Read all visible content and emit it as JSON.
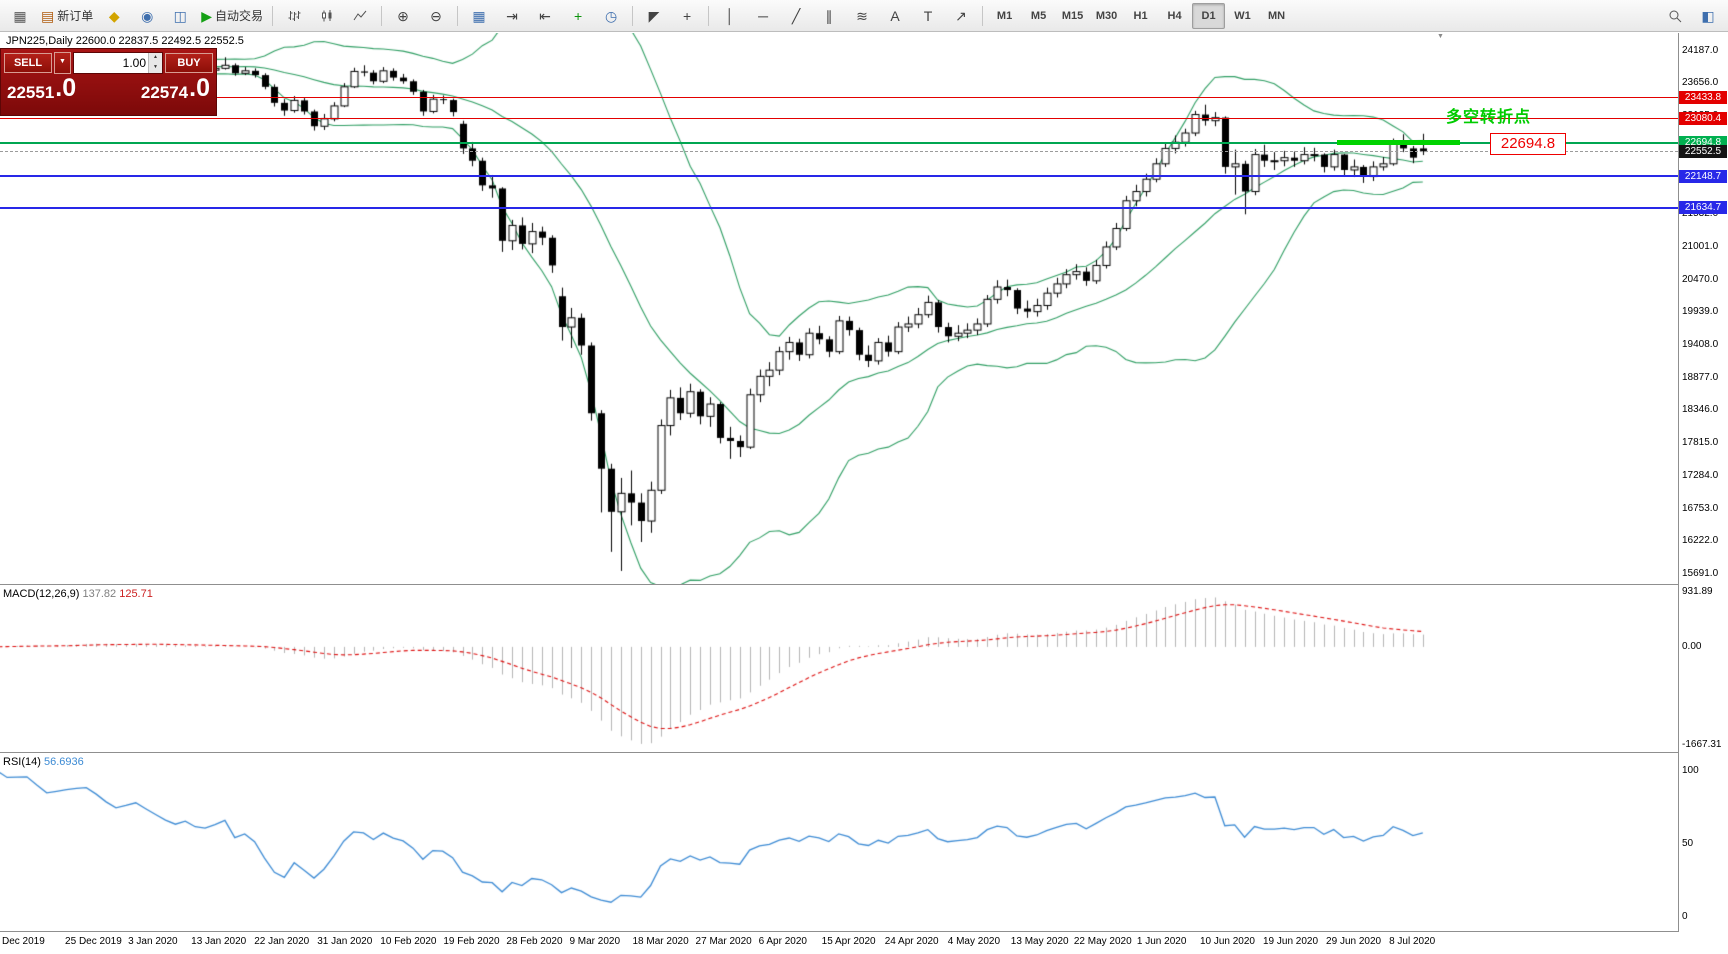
{
  "toolbar": {
    "items": [
      {
        "name": "new-chart-icon",
        "glyph": "▦",
        "color": "#5a5a5a"
      },
      {
        "name": "new-order-button",
        "glyph": "▤",
        "color": "#b05c10",
        "label": "新订单"
      },
      {
        "name": "history-center-icon",
        "glyph": "◆",
        "color": "#d2a400"
      },
      {
        "name": "navigator-icon",
        "glyph": "◉",
        "color": "#3f6fae"
      },
      {
        "name": "data-window-icon",
        "glyph": "◫",
        "color": "#3f6fae"
      },
      {
        "name": "autotrading-button",
        "glyph": "▶",
        "color": "#15a015",
        "label": "自动交易"
      },
      {
        "sep": true
      },
      {
        "name": "bar-chart-icon",
        "svg": "bars"
      },
      {
        "name": "candlestick-chart-icon",
        "svg": "candles"
      },
      {
        "name": "line-chart-icon",
        "svg": "line"
      },
      {
        "sep": true
      },
      {
        "name": "zoom-in-icon",
        "glyph": "⊕",
        "color": "#444444"
      },
      {
        "name": "zoom-out-icon",
        "glyph": "⊖",
        "color": "#444444"
      },
      {
        "sep": true
      },
      {
        "name": "tile-windows-icon",
        "glyph": "▦",
        "color": "#3f6fae"
      },
      {
        "name": "auto-scroll-icon",
        "glyph": "⇥",
        "color": "#444444"
      },
      {
        "name": "chart-shift-icon",
        "glyph": "⇤",
        "color": "#444444"
      },
      {
        "name": "indicators-icon",
        "glyph": "+",
        "color": "#0c930c"
      },
      {
        "name": "periods-icon",
        "glyph": "◷",
        "color": "#3f6fae"
      },
      {
        "sep": true
      },
      {
        "name": "cursor-icon",
        "glyph": "◤",
        "color": "#444444"
      },
      {
        "name": "crosshair-icon",
        "glyph": "+",
        "color": "#444444"
      },
      {
        "sep": true
      },
      {
        "name": "vertical-line-icon",
        "glyph": "│",
        "color": "#444444"
      },
      {
        "name": "horizontal-line-icon",
        "glyph": "─",
        "color": "#444444"
      },
      {
        "name": "trendline-icon",
        "glyph": "╱",
        "color": "#444444"
      },
      {
        "name": "channel-icon",
        "glyph": "∥",
        "color": "#444444"
      },
      {
        "name": "fibonacci-icon",
        "glyph": "≋",
        "color": "#444444"
      },
      {
        "name": "text-icon",
        "glyph": "A",
        "color": "#444444"
      },
      {
        "name": "label-icon",
        "glyph": "T",
        "color": "#444444"
      },
      {
        "name": "arrow-tools-icon",
        "glyph": "↗",
        "color": "#444444"
      },
      {
        "sep": true
      }
    ],
    "timeframes": [
      "M1",
      "M5",
      "M15",
      "M30",
      "H1",
      "H4",
      "D1",
      "W1",
      "MN"
    ],
    "active_timeframe": "D1",
    "right_items": [
      {
        "name": "search-icon",
        "svg": "search"
      },
      {
        "name": "window-layout-icon",
        "glyph": "◧",
        "color": "#3f6fae"
      }
    ]
  },
  "trade_panel": {
    "sell_label": "SELL",
    "buy_label": "BUY",
    "volume": "1.00",
    "sell_price_main": "22551",
    "sell_price_big": ".0",
    "buy_price_main": "22574",
    "buy_price_big": ".0"
  },
  "chart": {
    "symbol_line": "JPN225,Daily  22600.0 22837.5 22492.5 22552.5",
    "objects": {
      "levels": [
        {
          "price": 23433.8,
          "label": "23433.8",
          "color": "#e30000",
          "width": 1
        },
        {
          "price": 23080.4,
          "label": "23080.4",
          "color": "#e30000",
          "width": 1
        },
        {
          "price": 22694.8,
          "label": "22694.8",
          "color": "#00a651",
          "width": 2
        },
        {
          "price": 22148.7,
          "label": "22148.7",
          "color": "#2828e8",
          "width": 2
        },
        {
          "price": 21634.7,
          "label": "21634.7",
          "color": "#2828e8",
          "width": 2
        }
      ],
      "current_price": {
        "price": 22552.5,
        "label": "22552.5",
        "badge_color": "#141414",
        "line_color": "#9b9b9b"
      },
      "highlight_segment": {
        "price": 22694.8,
        "color": "#00d300"
      },
      "annotation_text": {
        "text": "多空转折点",
        "color": "#00cc00"
      },
      "price_label": {
        "text": "22694.8",
        "color": "#ee0000"
      }
    }
  },
  "chart_data": {
    "type": "candlestick",
    "symbol": "JPN225",
    "timeframe": "Daily",
    "title": "JPN225,Daily",
    "y_ticks": [
      "24187.0",
      "23656.0",
      "23125.0",
      "22594.0",
      "22063.0",
      "21532.0",
      "21001.0",
      "20470.0",
      "19939.0",
      "19408.0",
      "18877.0",
      "18346.0",
      "17815.0",
      "17284.0",
      "16753.0",
      "16222.0",
      "15691.0"
    ],
    "x_labels": [
      "Dec 2019",
      "25 Dec 2019",
      "3 Jan 2020",
      "13 Jan 2020",
      "22 Jan 2020",
      "31 Jan 2020",
      "10 Feb 2020",
      "19 Feb 2020",
      "28 Feb 2020",
      "9 Mar 2020",
      "18 Mar 2020",
      "27 Mar 2020",
      "6 Apr 2020",
      "15 Apr 2020",
      "24 Apr 2020",
      "4 May 2020",
      "13 May 2020",
      "22 May 2020",
      "1 Jun 2020",
      "10 Jun 2020",
      "19 Jun 2020",
      "29 Jun 2020",
      "8 Jul 2020"
    ],
    "indicators": {
      "bollinger": {
        "period": 20,
        "deviation": 2
      },
      "macd": {
        "fast": 12,
        "slow": 26,
        "signal": 9
      },
      "rsi": {
        "period": 14
      }
    },
    "ohlc": [
      [
        23700,
        23810,
        23650,
        23780
      ],
      [
        23780,
        23880,
        23730,
        23850
      ],
      [
        23850,
        23920,
        23790,
        23870
      ],
      [
        23870,
        23940,
        23800,
        23830
      ],
      [
        23830,
        23900,
        23760,
        23880
      ],
      [
        23880,
        23960,
        23820,
        23920
      ],
      [
        23920,
        23980,
        23840,
        23870
      ],
      [
        23870,
        23930,
        23790,
        23820
      ],
      [
        23820,
        23910,
        23770,
        23880
      ],
      [
        23880,
        23990,
        23830,
        23950
      ],
      [
        23950,
        24060,
        23900,
        24010
      ],
      [
        24010,
        24090,
        23950,
        24040
      ],
      [
        24040,
        24110,
        23970,
        24000
      ],
      [
        24000,
        24060,
        23920,
        23950
      ],
      [
        23950,
        24020,
        23880,
        23910
      ],
      [
        23910,
        23990,
        23850,
        23960
      ],
      [
        23960,
        24040,
        23900,
        24020
      ],
      [
        24020,
        24080,
        23940,
        23980
      ],
      [
        23980,
        24050,
        23910,
        23940
      ],
      [
        23940,
        24000,
        23870,
        23900
      ],
      [
        23900,
        23970,
        23830,
        23870
      ],
      [
        23870,
        23950,
        23810,
        23910
      ],
      [
        23910,
        23960,
        23820,
        23870
      ],
      [
        23870,
        23930,
        23800,
        23860
      ],
      [
        23870,
        23990,
        23820,
        23900
      ],
      [
        23900,
        24080,
        23880,
        23950
      ],
      [
        23950,
        23980,
        23780,
        23820
      ],
      [
        23820,
        23920,
        23790,
        23860
      ],
      [
        23860,
        23900,
        23750,
        23790
      ],
      [
        23790,
        23820,
        23560,
        23600
      ],
      [
        23600,
        23640,
        23280,
        23340
      ],
      [
        23340,
        23400,
        23130,
        23215
      ],
      [
        23215,
        23450,
        23180,
        23380
      ],
      [
        23380,
        23420,
        23150,
        23200
      ],
      [
        23200,
        23230,
        22890,
        22960
      ],
      [
        22960,
        23160,
        22900,
        23080
      ],
      [
        23080,
        23350,
        23040,
        23290
      ],
      [
        23290,
        23660,
        23270,
        23600
      ],
      [
        23600,
        23910,
        23580,
        23850
      ],
      [
        23850,
        23950,
        23770,
        23830
      ],
      [
        23830,
        23870,
        23640,
        23690
      ],
      [
        23690,
        23920,
        23660,
        23860
      ],
      [
        23860,
        23900,
        23700,
        23750
      ],
      [
        23750,
        23810,
        23650,
        23690
      ],
      [
        23690,
        23720,
        23470,
        23520
      ],
      [
        23520,
        23550,
        23130,
        23200
      ],
      [
        23200,
        23470,
        23170,
        23400
      ],
      [
        23400,
        23460,
        23320,
        23385
      ],
      [
        23385,
        23410,
        23120,
        23190
      ],
      [
        23000,
        23050,
        22510,
        22600
      ],
      [
        22600,
        22700,
        22310,
        22400
      ],
      [
        22400,
        22450,
        21910,
        22000
      ],
      [
        22000,
        22160,
        21800,
        21950
      ],
      [
        21950,
        21970,
        20920,
        21100
      ],
      [
        21100,
        21440,
        20950,
        21350
      ],
      [
        21350,
        21480,
        20960,
        21050
      ],
      [
        21050,
        21390,
        20900,
        21250
      ],
      [
        21250,
        21330,
        21030,
        21150
      ],
      [
        21150,
        21190,
        20580,
        20700
      ],
      [
        20200,
        20340,
        19480,
        19700
      ],
      [
        19700,
        20010,
        19360,
        19850
      ],
      [
        19850,
        19920,
        19250,
        19400
      ],
      [
        19400,
        19450,
        18180,
        18300
      ],
      [
        18300,
        18350,
        16690,
        17400
      ],
      [
        17400,
        17480,
        16050,
        16700
      ],
      [
        16700,
        17250,
        15740,
        17000
      ],
      [
        17000,
        17370,
        16480,
        16850
      ],
      [
        16850,
        17000,
        16210,
        16550
      ],
      [
        16550,
        17190,
        16360,
        17050
      ],
      [
        17050,
        18200,
        16990,
        18100
      ],
      [
        18100,
        18680,
        17940,
        18550
      ],
      [
        18550,
        18720,
        18190,
        18300
      ],
      [
        18300,
        18780,
        18230,
        18650
      ],
      [
        18650,
        18690,
        18120,
        18250
      ],
      [
        18250,
        18560,
        18080,
        18450
      ],
      [
        18450,
        18480,
        17810,
        17900
      ],
      [
        17900,
        18080,
        17560,
        17850
      ],
      [
        17850,
        17940,
        17590,
        17750
      ],
      [
        17750,
        18700,
        17720,
        18600
      ],
      [
        18600,
        19010,
        18480,
        18900
      ],
      [
        18900,
        19130,
        18740,
        19000
      ],
      [
        19000,
        19380,
        18920,
        19300
      ],
      [
        19300,
        19540,
        19170,
        19450
      ],
      [
        19450,
        19510,
        19150,
        19250
      ],
      [
        19250,
        19680,
        19190,
        19600
      ],
      [
        19600,
        19720,
        19420,
        19500
      ],
      [
        19500,
        19550,
        19210,
        19300
      ],
      [
        19300,
        19880,
        19260,
        19800
      ],
      [
        19800,
        19870,
        19560,
        19650
      ],
      [
        19650,
        19690,
        19160,
        19250
      ],
      [
        19250,
        19400,
        19050,
        19150
      ],
      [
        19150,
        19520,
        19090,
        19450
      ],
      [
        19450,
        19560,
        19220,
        19300
      ],
      [
        19300,
        19780,
        19260,
        19700
      ],
      [
        19700,
        19870,
        19620,
        19750
      ],
      [
        19750,
        20010,
        19680,
        19900
      ],
      [
        19900,
        20210,
        19850,
        20100
      ],
      [
        20100,
        20140,
        19610,
        19700
      ],
      [
        19700,
        19770,
        19450,
        19550
      ],
      [
        19550,
        19730,
        19470,
        19600
      ],
      [
        19600,
        19760,
        19520,
        19650
      ],
      [
        19650,
        19840,
        19570,
        19750
      ],
      [
        19750,
        20220,
        19700,
        20150
      ],
      [
        20150,
        20460,
        20080,
        20350
      ],
      [
        20350,
        20470,
        20200,
        20300
      ],
      [
        20300,
        20330,
        19910,
        20000
      ],
      [
        20000,
        20130,
        19850,
        19950
      ],
      [
        19950,
        20160,
        19870,
        20050
      ],
      [
        20050,
        20340,
        19980,
        20250
      ],
      [
        20250,
        20500,
        20180,
        20400
      ],
      [
        20400,
        20640,
        20330,
        20550
      ],
      [
        20550,
        20720,
        20470,
        20600
      ],
      [
        20600,
        20670,
        20370,
        20450
      ],
      [
        20450,
        20790,
        20400,
        20700
      ],
      [
        20700,
        21090,
        20650,
        21000
      ],
      [
        21000,
        21390,
        20950,
        21300
      ],
      [
        21300,
        21830,
        21260,
        21750
      ],
      [
        21750,
        22010,
        21660,
        21900
      ],
      [
        21900,
        22190,
        21820,
        22100
      ],
      [
        22100,
        22440,
        22050,
        22350
      ],
      [
        22350,
        22690,
        22300,
        22600
      ],
      [
        22600,
        22810,
        22520,
        22700
      ],
      [
        22700,
        22920,
        22630,
        22850
      ],
      [
        22850,
        23210,
        22800,
        23150
      ],
      [
        23150,
        23310,
        22970,
        23050
      ],
      [
        23050,
        23190,
        22960,
        23100
      ],
      [
        23100,
        23120,
        22190,
        22300
      ],
      [
        22300,
        22580,
        21850,
        22350
      ],
      [
        22350,
        22400,
        21530,
        21900
      ],
      [
        21900,
        22590,
        21840,
        22500
      ],
      [
        22500,
        22660,
        22300,
        22400
      ],
      [
        22400,
        22540,
        22250,
        22400
      ],
      [
        22400,
        22560,
        22310,
        22450
      ],
      [
        22450,
        22550,
        22300,
        22400
      ],
      [
        22400,
        22620,
        22340,
        22500
      ],
      [
        22500,
        22610,
        22390,
        22500
      ],
      [
        22500,
        22520,
        22210,
        22300
      ],
      [
        22300,
        22580,
        22240,
        22500
      ],
      [
        22500,
        22510,
        22150,
        22250
      ],
      [
        22250,
        22420,
        22140,
        22300
      ],
      [
        22300,
        22330,
        22040,
        22150
      ],
      [
        22150,
        22390,
        22070,
        22300
      ],
      [
        22300,
        22460,
        22240,
        22350
      ],
      [
        22350,
        22760,
        22320,
        22700
      ],
      [
        22700,
        22830,
        22540,
        22600
      ],
      [
        22600,
        22640,
        22360,
        22450
      ],
      [
        22600,
        22837.5,
        22492.5,
        22552.5
      ]
    ]
  },
  "macd_panel": {
    "name": "MACD(12,26,9)",
    "main_value": "137.82",
    "signal_value": "125.71",
    "axis": [
      "931.89",
      "0.00",
      "-1667.31"
    ]
  },
  "rsi_panel": {
    "name": "RSI(14)",
    "value": "56.6936",
    "axis": [
      "100",
      "50",
      "0"
    ]
  }
}
